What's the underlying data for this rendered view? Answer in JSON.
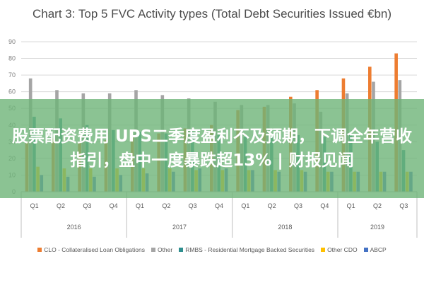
{
  "overlay": {
    "headline": "股票配资费用 UPS二季度盈利不及预期，下调全年营收指引，盘中一度暴跌超13% | 财报见闻"
  },
  "chart_data": {
    "type": "bar",
    "title": "Chart 3: Top 5 FVC Activity types (Total Debt Securities Issued €bn)",
    "xlabel": "",
    "ylabel": "",
    "ylim": [
      0,
      90
    ],
    "yticks": [
      0,
      10,
      20,
      30,
      40,
      50,
      60,
      70,
      80,
      90
    ],
    "grid": true,
    "legend_position": "bottom",
    "categories": [
      "Q1",
      "Q2",
      "Q3",
      "Q4",
      "Q1",
      "Q2",
      "Q3",
      "Q4",
      "Q1",
      "Q2",
      "Q3",
      "Q4",
      "Q1",
      "Q2",
      "Q3"
    ],
    "groups": [
      {
        "label": "2016",
        "span": 4
      },
      {
        "label": "2017",
        "span": 4
      },
      {
        "label": "2018",
        "span": 4
      },
      {
        "label": "2019",
        "span": 3
      }
    ],
    "series": [
      {
        "name": "CLO - Collateralised Loan Obligations",
        "color": "#ed7d31",
        "values": [
          30,
          32,
          30,
          31,
          33,
          35,
          38,
          40,
          49,
          51,
          57,
          61,
          68,
          75,
          83
        ]
      },
      {
        "name": "Other",
        "color": "#a5a5a5",
        "values": [
          68,
          61,
          59,
          59,
          61,
          58,
          56,
          54,
          52,
          52,
          53,
          48,
          59,
          66,
          67
        ]
      },
      {
        "name": "RMBS - Residential Mortgage Backed Securities",
        "color": "#2f8f8f",
        "values": [
          45,
          44,
          40,
          37,
          36,
          35,
          36,
          34,
          33,
          33,
          34,
          33,
          34,
          30,
          25
        ]
      },
      {
        "name": "Other CDO",
        "color": "#ffc000",
        "values": [
          15,
          14,
          14,
          14,
          14,
          14,
          13,
          13,
          13,
          13,
          13,
          12,
          12,
          12,
          12
        ]
      },
      {
        "name": "ABCP",
        "color": "#4472c4",
        "values": [
          10,
          9,
          9,
          10,
          11,
          12,
          14,
          14,
          13,
          12,
          12,
          12,
          12,
          12,
          12
        ]
      }
    ]
  }
}
